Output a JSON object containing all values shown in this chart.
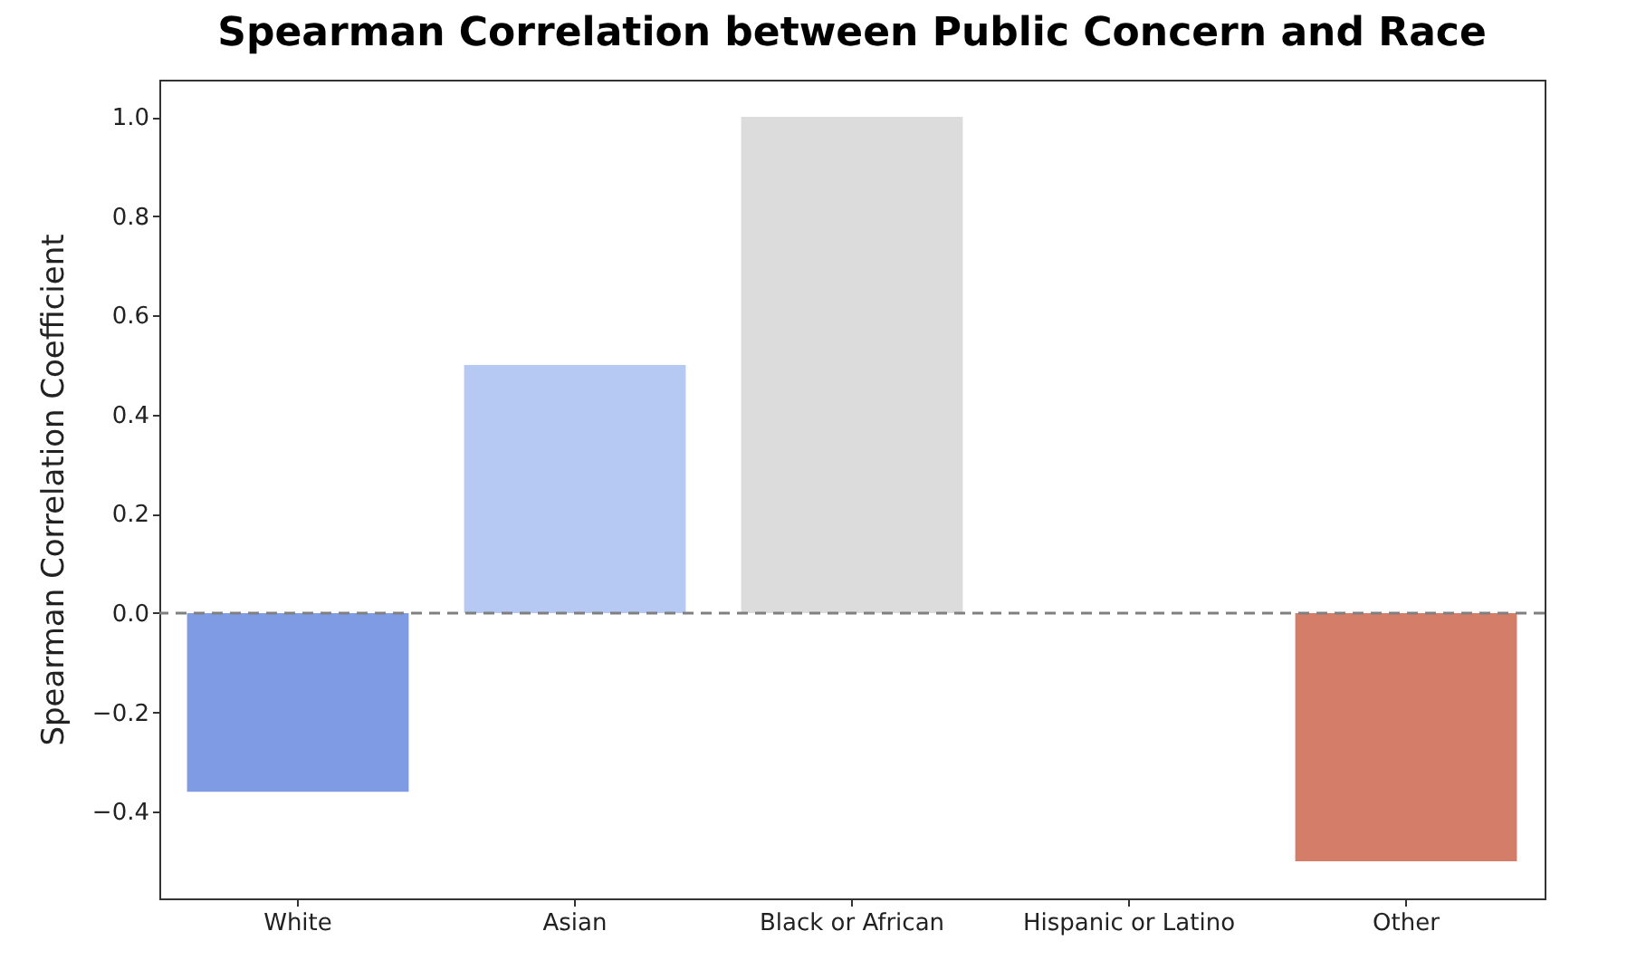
{
  "chart_data": {
    "type": "bar",
    "title": "Spearman Correlation between Public Concern and Race",
    "ylabel": "Spearman Correlation Coefficient",
    "categories": [
      "White",
      "Asian",
      "Black or African",
      "Hispanic or Latino",
      "Other"
    ],
    "values": [
      -0.36,
      0.5,
      1.0,
      0,
      -0.5
    ],
    "colors": [
      "#7f9be3",
      "#b5c9f2",
      "#dcdcdc",
      "#f3b49c",
      "#d47d69"
    ],
    "ylim": [
      -0.575,
      1.075
    ],
    "yticks": [
      {
        "value": -0.4,
        "label": "−0.4"
      },
      {
        "value": -0.2,
        "label": "−0.2"
      },
      {
        "value": 0,
        "label": "0.0"
      },
      {
        "value": 0.2,
        "label": "0.2"
      },
      {
        "value": 0.4,
        "label": "0.4"
      },
      {
        "value": 0.6,
        "label": "0.6"
      },
      {
        "value": 0.8,
        "label": "0.8"
      },
      {
        "value": 1.0,
        "label": "1.0"
      }
    ],
    "ref_lines": [
      {
        "axis": "y",
        "value": 0,
        "color": "#808080",
        "line_style": "dashed"
      }
    ],
    "grid": false,
    "legend": false
  }
}
